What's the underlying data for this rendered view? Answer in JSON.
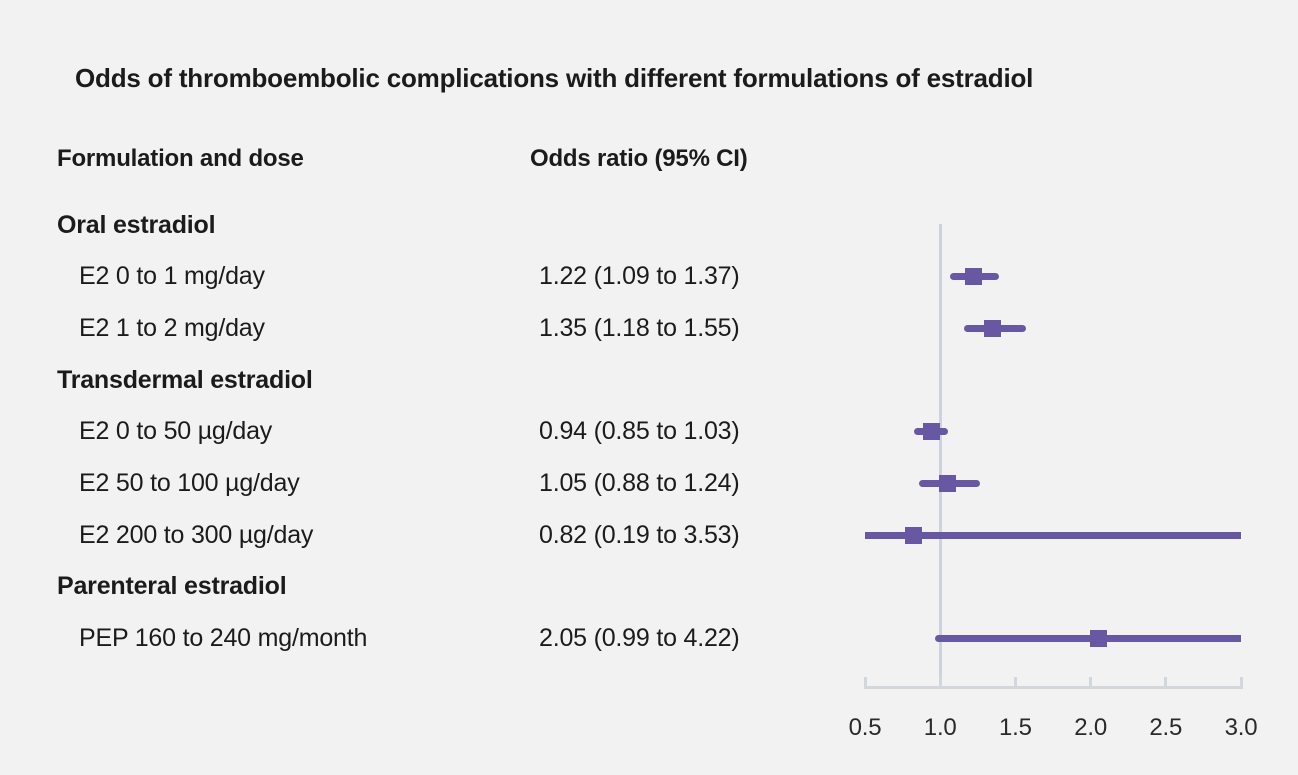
{
  "title": "Odds of thromboembolic complications with different formulations of estradiol",
  "columns": {
    "formulation": "Formulation and dose",
    "odds": "Odds ratio (95% CI)"
  },
  "colors": {
    "background": "#f2f2f2",
    "marker": "#6858a4",
    "reference_line": "#ccd3dc",
    "axis": "#d2d7de",
    "text": "#1b1b1b"
  },
  "chart_data": {
    "type": "forest",
    "title": "Odds of thromboembolic complications with different formulations of estradiol",
    "xlabel": "",
    "ylabel": "",
    "xlim": [
      0.5,
      3.0
    ],
    "reference_line": 1.0,
    "x_ticks": [
      {
        "value": 0.5,
        "label": "0.5"
      },
      {
        "value": 1.0,
        "label": "1.0"
      },
      {
        "value": 1.5,
        "label": "1.5"
      },
      {
        "value": 2.0,
        "label": "2.0"
      },
      {
        "value": 2.5,
        "label": "2.5"
      },
      {
        "value": 3.0,
        "label": "3.0"
      }
    ],
    "rows": [
      {
        "type": "group",
        "label": "Oral estradiol"
      },
      {
        "type": "item",
        "label": "E2 0 to 1 mg/day",
        "value_text": "1.22 (1.09 to 1.37)",
        "or": 1.22,
        "ci_low": 1.09,
        "ci_high": 1.37
      },
      {
        "type": "item",
        "label": "E2 1 to 2 mg/day",
        "value_text": "1.35 (1.18 to 1.55)",
        "or": 1.35,
        "ci_low": 1.18,
        "ci_high": 1.55
      },
      {
        "type": "group",
        "label": "Transdermal estradiol"
      },
      {
        "type": "item",
        "label": "E2 0 to 50 µg/day",
        "value_text": "0.94 (0.85 to 1.03)",
        "or": 0.94,
        "ci_low": 0.85,
        "ci_high": 1.03
      },
      {
        "type": "item",
        "label": "E2 50 to 100 µg/day",
        "value_text": "1.05 (0.88 to 1.24)",
        "or": 1.05,
        "ci_low": 0.88,
        "ci_high": 1.24
      },
      {
        "type": "item",
        "label": "E2 200 to 300 µg/day",
        "value_text": "0.82 (0.19 to 3.53)",
        "or": 0.82,
        "ci_low": 0.19,
        "ci_high": 3.53
      },
      {
        "type": "group",
        "label": "Parenteral estradiol"
      },
      {
        "type": "item",
        "label": "PEP 160 to 240 mg/month",
        "value_text": "2.05 (0.99 to 4.22)",
        "or": 2.05,
        "ci_low": 0.99,
        "ci_high": 4.22
      }
    ]
  }
}
